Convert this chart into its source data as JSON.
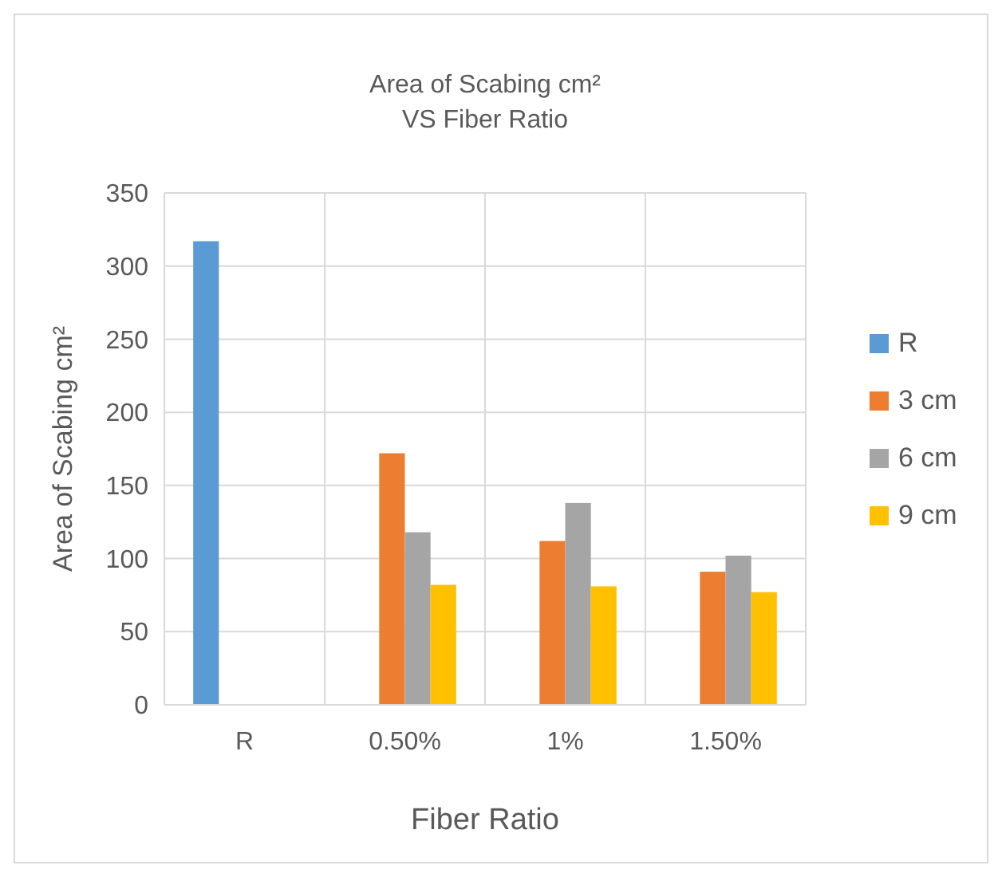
{
  "chart_data": {
    "type": "bar",
    "title": "Area of Scabing cm²\nVS Fiber Ratio",
    "xlabel": "Fiber Ratio",
    "ylabel": "Area of Scabing cm²",
    "categories": [
      "R",
      "0.50%",
      "1%",
      "1.50%"
    ],
    "series": [
      {
        "name": "R",
        "color": "#5b9bd5",
        "values": [
          317,
          null,
          null,
          null
        ]
      },
      {
        "name": "3 cm",
        "color": "#ed7d31",
        "values": [
          null,
          172,
          112,
          91
        ]
      },
      {
        "name": "6 cm",
        "color": "#a5a5a5",
        "values": [
          null,
          118,
          138,
          102
        ]
      },
      {
        "name": "9 cm",
        "color": "#ffc000",
        "values": [
          null,
          82,
          81,
          77
        ]
      }
    ],
    "ylim": [
      0,
      350
    ],
    "yticks": [
      0,
      50,
      100,
      150,
      200,
      250,
      300,
      350
    ],
    "grid": true,
    "legend": "right"
  }
}
